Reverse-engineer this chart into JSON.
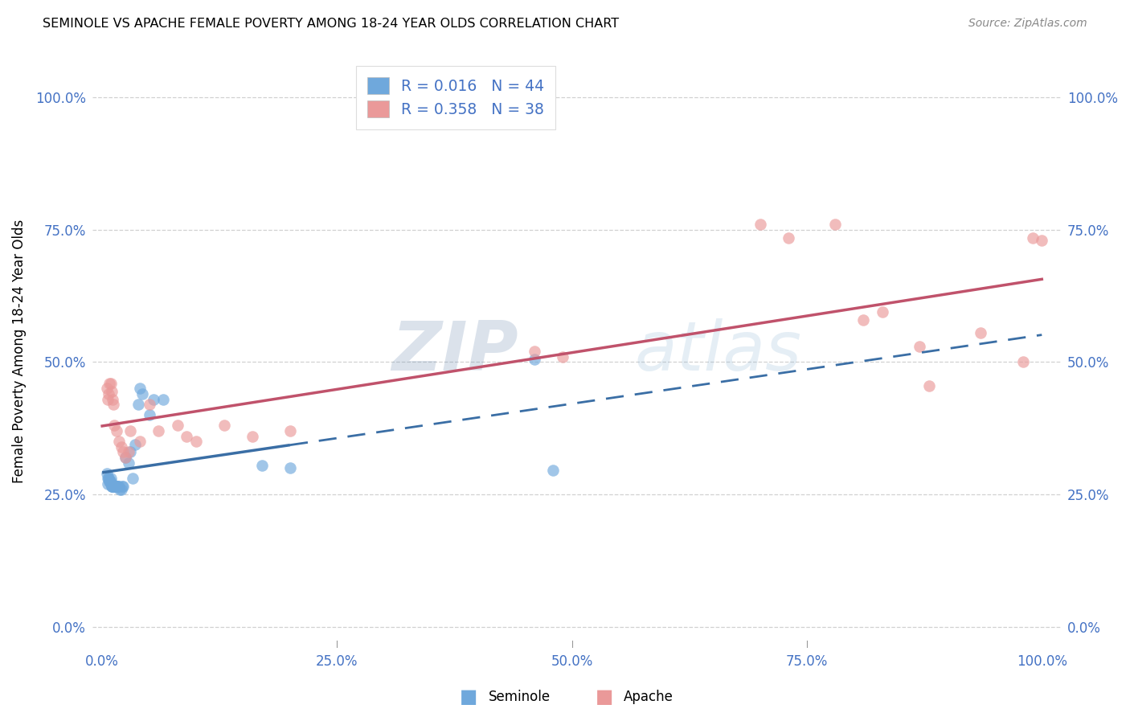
{
  "title": "SEMINOLE VS APACHE FEMALE POVERTY AMONG 18-24 YEAR OLDS CORRELATION CHART",
  "source": "Source: ZipAtlas.com",
  "ylabel": "Female Poverty Among 18-24 Year Olds",
  "legend_r1": "R = 0.016",
  "legend_n1": "N = 44",
  "legend_r2": "R = 0.358",
  "legend_n2": "N = 38",
  "seminole_color": "#6fa8dc",
  "apache_color": "#ea9999",
  "seminole_line_color": "#3a6ea5",
  "apache_line_color": "#c0526b",
  "watermark_zip": "ZIP",
  "watermark_atlas": "atlas",
  "xlim": [
    -0.01,
    1.02
  ],
  "ylim": [
    -0.04,
    1.08
  ],
  "seminole_x": [
    0.005,
    0.006,
    0.006,
    0.007,
    0.007,
    0.008,
    0.008,
    0.009,
    0.009,
    0.009,
    0.01,
    0.01,
    0.01,
    0.011,
    0.011,
    0.012,
    0.012,
    0.013,
    0.013,
    0.014,
    0.015,
    0.016,
    0.016,
    0.017,
    0.018,
    0.019,
    0.02,
    0.021,
    0.022,
    0.025,
    0.028,
    0.03,
    0.032,
    0.035,
    0.038,
    0.04,
    0.043,
    0.05,
    0.055,
    0.065,
    0.17,
    0.2,
    0.46,
    0.48
  ],
  "seminole_y": [
    0.29,
    0.27,
    0.28,
    0.28,
    0.28,
    0.275,
    0.275,
    0.275,
    0.28,
    0.27,
    0.27,
    0.265,
    0.265,
    0.265,
    0.265,
    0.265,
    0.265,
    0.265,
    0.265,
    0.265,
    0.265,
    0.265,
    0.265,
    0.265,
    0.265,
    0.26,
    0.26,
    0.265,
    0.265,
    0.32,
    0.31,
    0.33,
    0.28,
    0.345,
    0.42,
    0.45,
    0.44,
    0.4,
    0.43,
    0.43,
    0.305,
    0.3,
    0.505,
    0.295
  ],
  "apache_x": [
    0.005,
    0.006,
    0.007,
    0.008,
    0.009,
    0.01,
    0.011,
    0.012,
    0.013,
    0.015,
    0.018,
    0.02,
    0.022,
    0.025,
    0.028,
    0.03,
    0.04,
    0.05,
    0.06,
    0.08,
    0.09,
    0.1,
    0.13,
    0.16,
    0.2,
    0.46,
    0.49,
    0.7,
    0.73,
    0.78,
    0.81,
    0.83,
    0.87,
    0.88,
    0.935,
    0.98,
    0.99,
    1.0
  ],
  "apache_y": [
    0.45,
    0.43,
    0.44,
    0.46,
    0.46,
    0.445,
    0.43,
    0.42,
    0.38,
    0.37,
    0.35,
    0.34,
    0.33,
    0.32,
    0.33,
    0.37,
    0.35,
    0.42,
    0.37,
    0.38,
    0.36,
    0.35,
    0.38,
    0.36,
    0.37,
    0.52,
    0.51,
    0.76,
    0.735,
    0.76,
    0.58,
    0.595,
    0.53,
    0.455,
    0.555,
    0.5,
    0.735,
    0.73
  ]
}
